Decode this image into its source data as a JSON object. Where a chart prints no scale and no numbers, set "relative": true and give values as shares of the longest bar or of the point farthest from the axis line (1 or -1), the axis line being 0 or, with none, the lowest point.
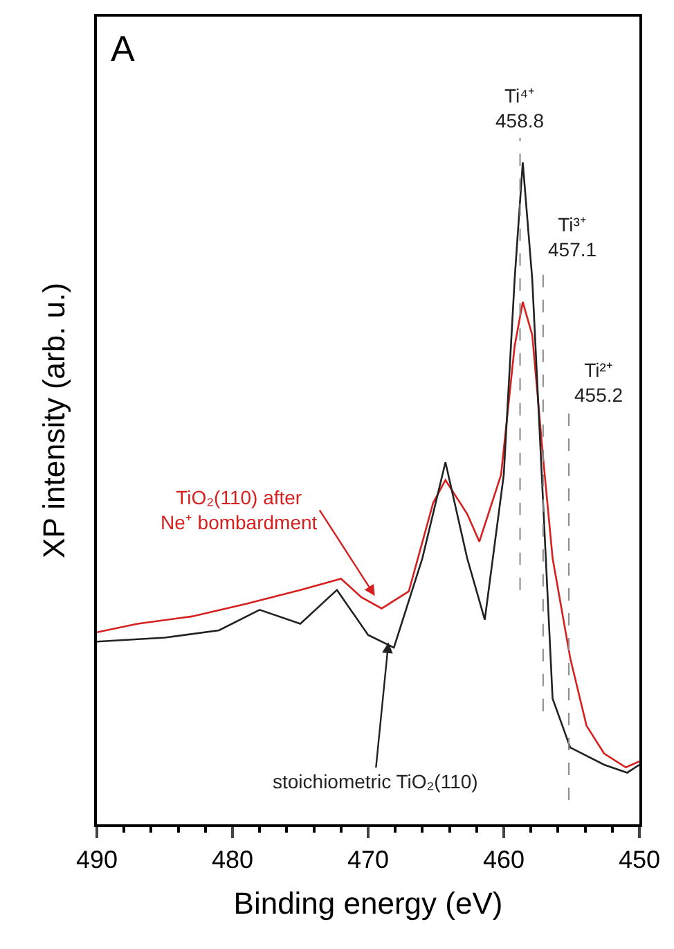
{
  "chart_data": {
    "type": "line",
    "relative": true,
    "xlabel": "Binding energy (eV)",
    "ylabel": "XP intensity (arb. u.)",
    "xlim": [
      490,
      450
    ],
    "xticks": [
      490,
      480,
      470,
      460,
      450
    ],
    "line_style": "solid",
    "series": [
      {
        "color": "#d62020",
        "x": [
          490,
          487,
          483,
          479,
          475,
          472,
          470.5,
          469,
          467,
          465.2,
          464.3,
          462.7,
          461.8,
          460.2,
          459.2,
          458.6,
          457.9,
          457.1,
          456.4,
          455.1,
          453.9,
          452.6,
          451,
          450
        ],
        "values": [
          0.29,
          0.303,
          0.314,
          0.333,
          0.354,
          0.371,
          0.343,
          0.326,
          0.352,
          0.486,
          0.52,
          0.469,
          0.427,
          0.528,
          0.722,
          0.789,
          0.739,
          0.554,
          0.402,
          0.251,
          0.149,
          0.107,
          0.086,
          0.095
        ]
      },
      {
        "color": "#222222",
        "x": [
          490,
          485,
          481,
          478,
          475,
          472.3,
          470,
          468.1,
          466,
          464.3,
          462.7,
          461.4,
          460,
          459.2,
          458.6,
          457.9,
          457.1,
          456.4,
          455.1,
          452.6,
          450.9,
          450
        ],
        "values": [
          0.276,
          0.282,
          0.293,
          0.324,
          0.303,
          0.354,
          0.286,
          0.267,
          0.402,
          0.547,
          0.402,
          0.309,
          0.528,
          0.823,
          1.0,
          0.823,
          0.486,
          0.19,
          0.116,
          0.09,
          0.078,
          0.09
        ]
      }
    ],
    "ref_lines": [
      {
        "axis": "x",
        "value": 458.8,
        "label": "Ti⁴⁺\n458.8",
        "color": "#888888",
        "line_style": "dashed"
      },
      {
        "axis": "x",
        "value": 457.1,
        "label": "Ti³⁺\n457.1",
        "color": "#888888",
        "line_style": "dashed"
      },
      {
        "axis": "x",
        "value": 455.2,
        "label": "Ti²⁺\n455.2",
        "color": "#888888",
        "line_style": "dashed"
      }
    ],
    "annotations": [
      "A",
      {
        "text": "TiO₂(110) after\nNe⁺ bombardment",
        "x": 469.5,
        "y": 0.345
      },
      {
        "text": "stoichiometric TiO₂(110)",
        "x": 468.5,
        "y": 0.275
      }
    ]
  }
}
